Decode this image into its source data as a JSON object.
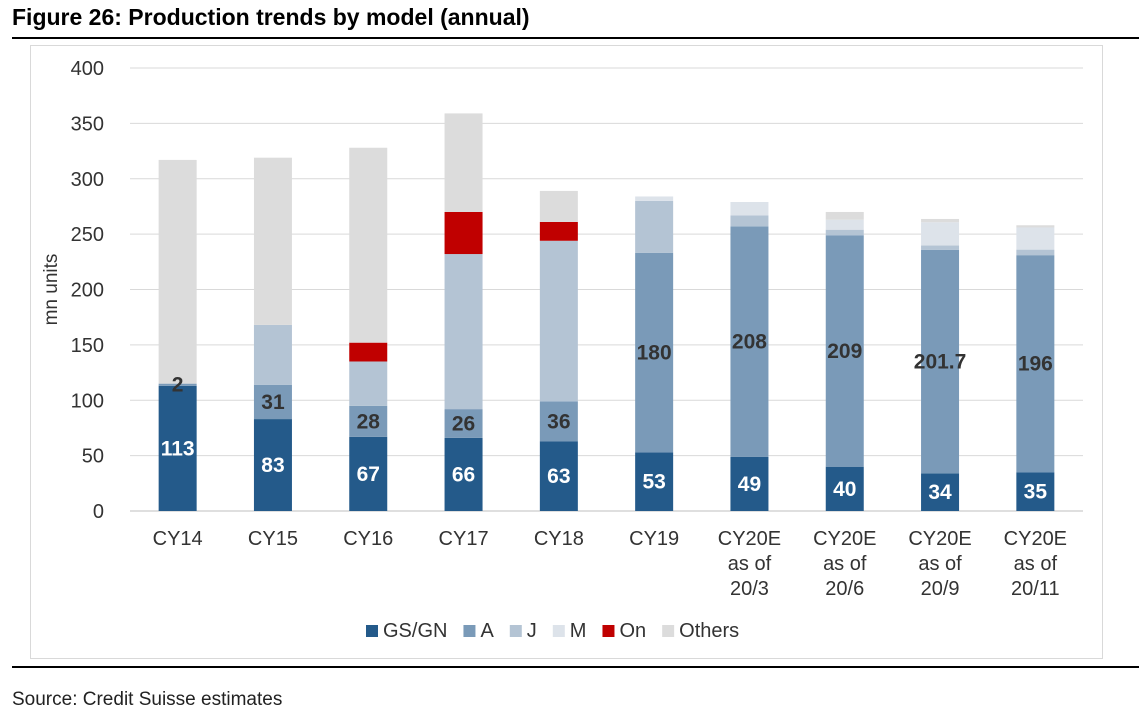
{
  "figure": {
    "title": "Figure 26: Production trends by model (annual)",
    "source": "Source: Credit Suisse estimates"
  },
  "chart_data": {
    "type": "bar",
    "stacked": true,
    "ylabel": "mn units",
    "xlabel": "",
    "ylim": [
      0,
      400
    ],
    "yticks": [
      0,
      50,
      100,
      150,
      200,
      250,
      300,
      350,
      400
    ],
    "grid": true,
    "legend_position": "bottom",
    "categories": [
      [
        "CY14"
      ],
      [
        "CY15"
      ],
      [
        "CY16"
      ],
      [
        "CY17"
      ],
      [
        "CY18"
      ],
      [
        "CY19"
      ],
      [
        "CY20E",
        "as of",
        "20/3"
      ],
      [
        "CY20E",
        "as of",
        "20/6"
      ],
      [
        "CY20E",
        "as of",
        "20/9"
      ],
      [
        "CY20E",
        "as of",
        "20/11"
      ]
    ],
    "series": [
      {
        "name": "GS/GN",
        "color": "#245a8a",
        "values": [
          113,
          83,
          67,
          66,
          63,
          53,
          49,
          40,
          34,
          35
        ]
      },
      {
        "name": "A",
        "color": "#7a9ab8",
        "values": [
          2,
          31,
          28,
          26,
          36,
          180,
          208,
          209,
          201.7,
          196
        ]
      },
      {
        "name": "J",
        "color": "#b4c4d4",
        "values": [
          0,
          54,
          40,
          140,
          145,
          47,
          10,
          5,
          4,
          5
        ]
      },
      {
        "name": "M",
        "color": "#dde3ea",
        "values": [
          0,
          0,
          0,
          0,
          0,
          4,
          12,
          9,
          21,
          20
        ]
      },
      {
        "name": "On",
        "color": "#c00000",
        "values": [
          0,
          0,
          17,
          38,
          17,
          0,
          0,
          0,
          0,
          0
        ]
      },
      {
        "name": "Others",
        "color": "#dcdcdc",
        "values": [
          202,
          151,
          176,
          89,
          28,
          0,
          0,
          7,
          3,
          2
        ]
      }
    ],
    "data_labels": [
      {
        "series": 0,
        "values": [
          "113",
          "83",
          "67",
          "66",
          "63",
          "53",
          "49",
          "40",
          "34",
          "35"
        ],
        "color": "#ffffff"
      },
      {
        "series": 1,
        "values": [
          "2",
          "31",
          "28",
          "26",
          "36",
          "180",
          "208",
          "209",
          "201.7",
          "196"
        ],
        "color": "#333333"
      }
    ]
  }
}
